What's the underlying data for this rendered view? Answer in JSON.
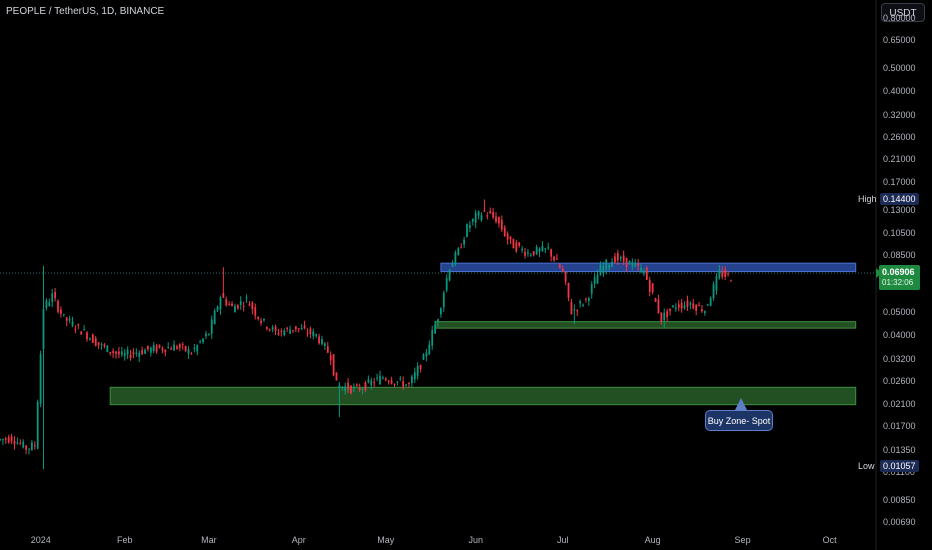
{
  "header": {
    "title": "PEOPLE / TetherUS, 1D, BINANCE",
    "currency_button": "USDT"
  },
  "colors": {
    "background": "#000000",
    "up_candle": "#089981",
    "down_candle": "#f23645",
    "resistance_zone": "#2d4fa8",
    "support_zone": "#2e6b2e",
    "price_tag": "#1e8a3f"
  },
  "price_axis": {
    "ticks": [
      "0.80000",
      "0.65000",
      "0.50000",
      "0.40000",
      "0.32000",
      "0.26000",
      "0.21000",
      "0.17000",
      "0.13000",
      "0.10500",
      "0.08500",
      "0.05000",
      "0.04000",
      "0.03200",
      "0.02600",
      "0.02100",
      "0.01700",
      "0.01350",
      "0.01100",
      "0.00850",
      "0.00690"
    ],
    "high_label": "High",
    "high_value": "0.14400",
    "low_label": "Low",
    "low_value": "0.01057",
    "last_price": "0.06906",
    "countdown": "01:32:06"
  },
  "time_axis": {
    "ticks": [
      "2024",
      "Feb",
      "Mar",
      "Apr",
      "May",
      "Jun",
      "Jul",
      "Aug",
      "Sep",
      "Oct"
    ]
  },
  "annotation": {
    "text": "Buy Zone- Spot"
  },
  "chart_data": {
    "type": "candlestick",
    "title": "PEOPLE / TetherUS, 1D, BINANCE",
    "y_scale": "log",
    "ylim": [
      0.0065,
      0.86
    ],
    "xlim": [
      "2023-12-20",
      "2024-10-17"
    ],
    "high": 0.144,
    "low": 0.01057,
    "last": 0.06906,
    "zones": [
      {
        "kind": "resistance",
        "from": "2024-05-20",
        "to": "2024-10-10",
        "low": 0.073,
        "high": 0.079
      },
      {
        "kind": "support",
        "from": "2024-05-18",
        "to": "2024-10-10",
        "low": 0.0428,
        "high": 0.0455
      },
      {
        "kind": "support",
        "from": "2024-01-27",
        "to": "2024-10-10",
        "low": 0.0208,
        "high": 0.0245
      }
    ],
    "annotation_anchor": {
      "date": "2024-08-26",
      "price": 0.0208
    },
    "anchors": [
      [
        "2023-12-20",
        0.0149
      ],
      [
        "2023-12-25",
        0.0152
      ],
      [
        "2023-12-30",
        0.0138
      ],
      [
        "2024-01-02",
        0.0142
      ],
      [
        "2024-01-05",
        0.052
      ],
      [
        "2024-01-08",
        0.058
      ],
      [
        "2024-01-12",
        0.047
      ],
      [
        "2024-01-18",
        0.042
      ],
      [
        "2024-01-25",
        0.036
      ],
      [
        "2024-02-01",
        0.033
      ],
      [
        "2024-02-10",
        0.035
      ],
      [
        "2024-02-20",
        0.036
      ],
      [
        "2024-02-25",
        0.034
      ],
      [
        "2024-03-02",
        0.041
      ],
      [
        "2024-03-06",
        0.058
      ],
      [
        "2024-03-10",
        0.052
      ],
      [
        "2024-03-15",
        0.056
      ],
      [
        "2024-03-20",
        0.046
      ],
      [
        "2024-03-25",
        0.041
      ],
      [
        "2024-04-01",
        0.043
      ],
      [
        "2024-04-08",
        0.04
      ],
      [
        "2024-04-13",
        0.033
      ],
      [
        "2024-04-15",
        0.025
      ],
      [
        "2024-04-22",
        0.024
      ],
      [
        "2024-05-01",
        0.027
      ],
      [
        "2024-05-10",
        0.025
      ],
      [
        "2024-05-15",
        0.032
      ],
      [
        "2024-05-20",
        0.048
      ],
      [
        "2024-05-24",
        0.077
      ],
      [
        "2024-05-27",
        0.088
      ],
      [
        "2024-05-30",
        0.11
      ],
      [
        "2024-06-02",
        0.122
      ],
      [
        "2024-06-05",
        0.128
      ],
      [
        "2024-06-09",
        0.12
      ],
      [
        "2024-06-14",
        0.095
      ],
      [
        "2024-06-20",
        0.087
      ],
      [
        "2024-06-27",
        0.09
      ],
      [
        "2024-07-02",
        0.072
      ],
      [
        "2024-07-05",
        0.05
      ],
      [
        "2024-07-10",
        0.056
      ],
      [
        "2024-07-15",
        0.075
      ],
      [
        "2024-07-20",
        0.083
      ],
      [
        "2024-07-25",
        0.079
      ],
      [
        "2024-07-30",
        0.073
      ],
      [
        "2024-08-05",
        0.047
      ],
      [
        "2024-08-10",
        0.053
      ],
      [
        "2024-08-15",
        0.054
      ],
      [
        "2024-08-20",
        0.051
      ],
      [
        "2024-08-25",
        0.072
      ],
      [
        "2024-08-29",
        0.069
      ]
    ]
  }
}
